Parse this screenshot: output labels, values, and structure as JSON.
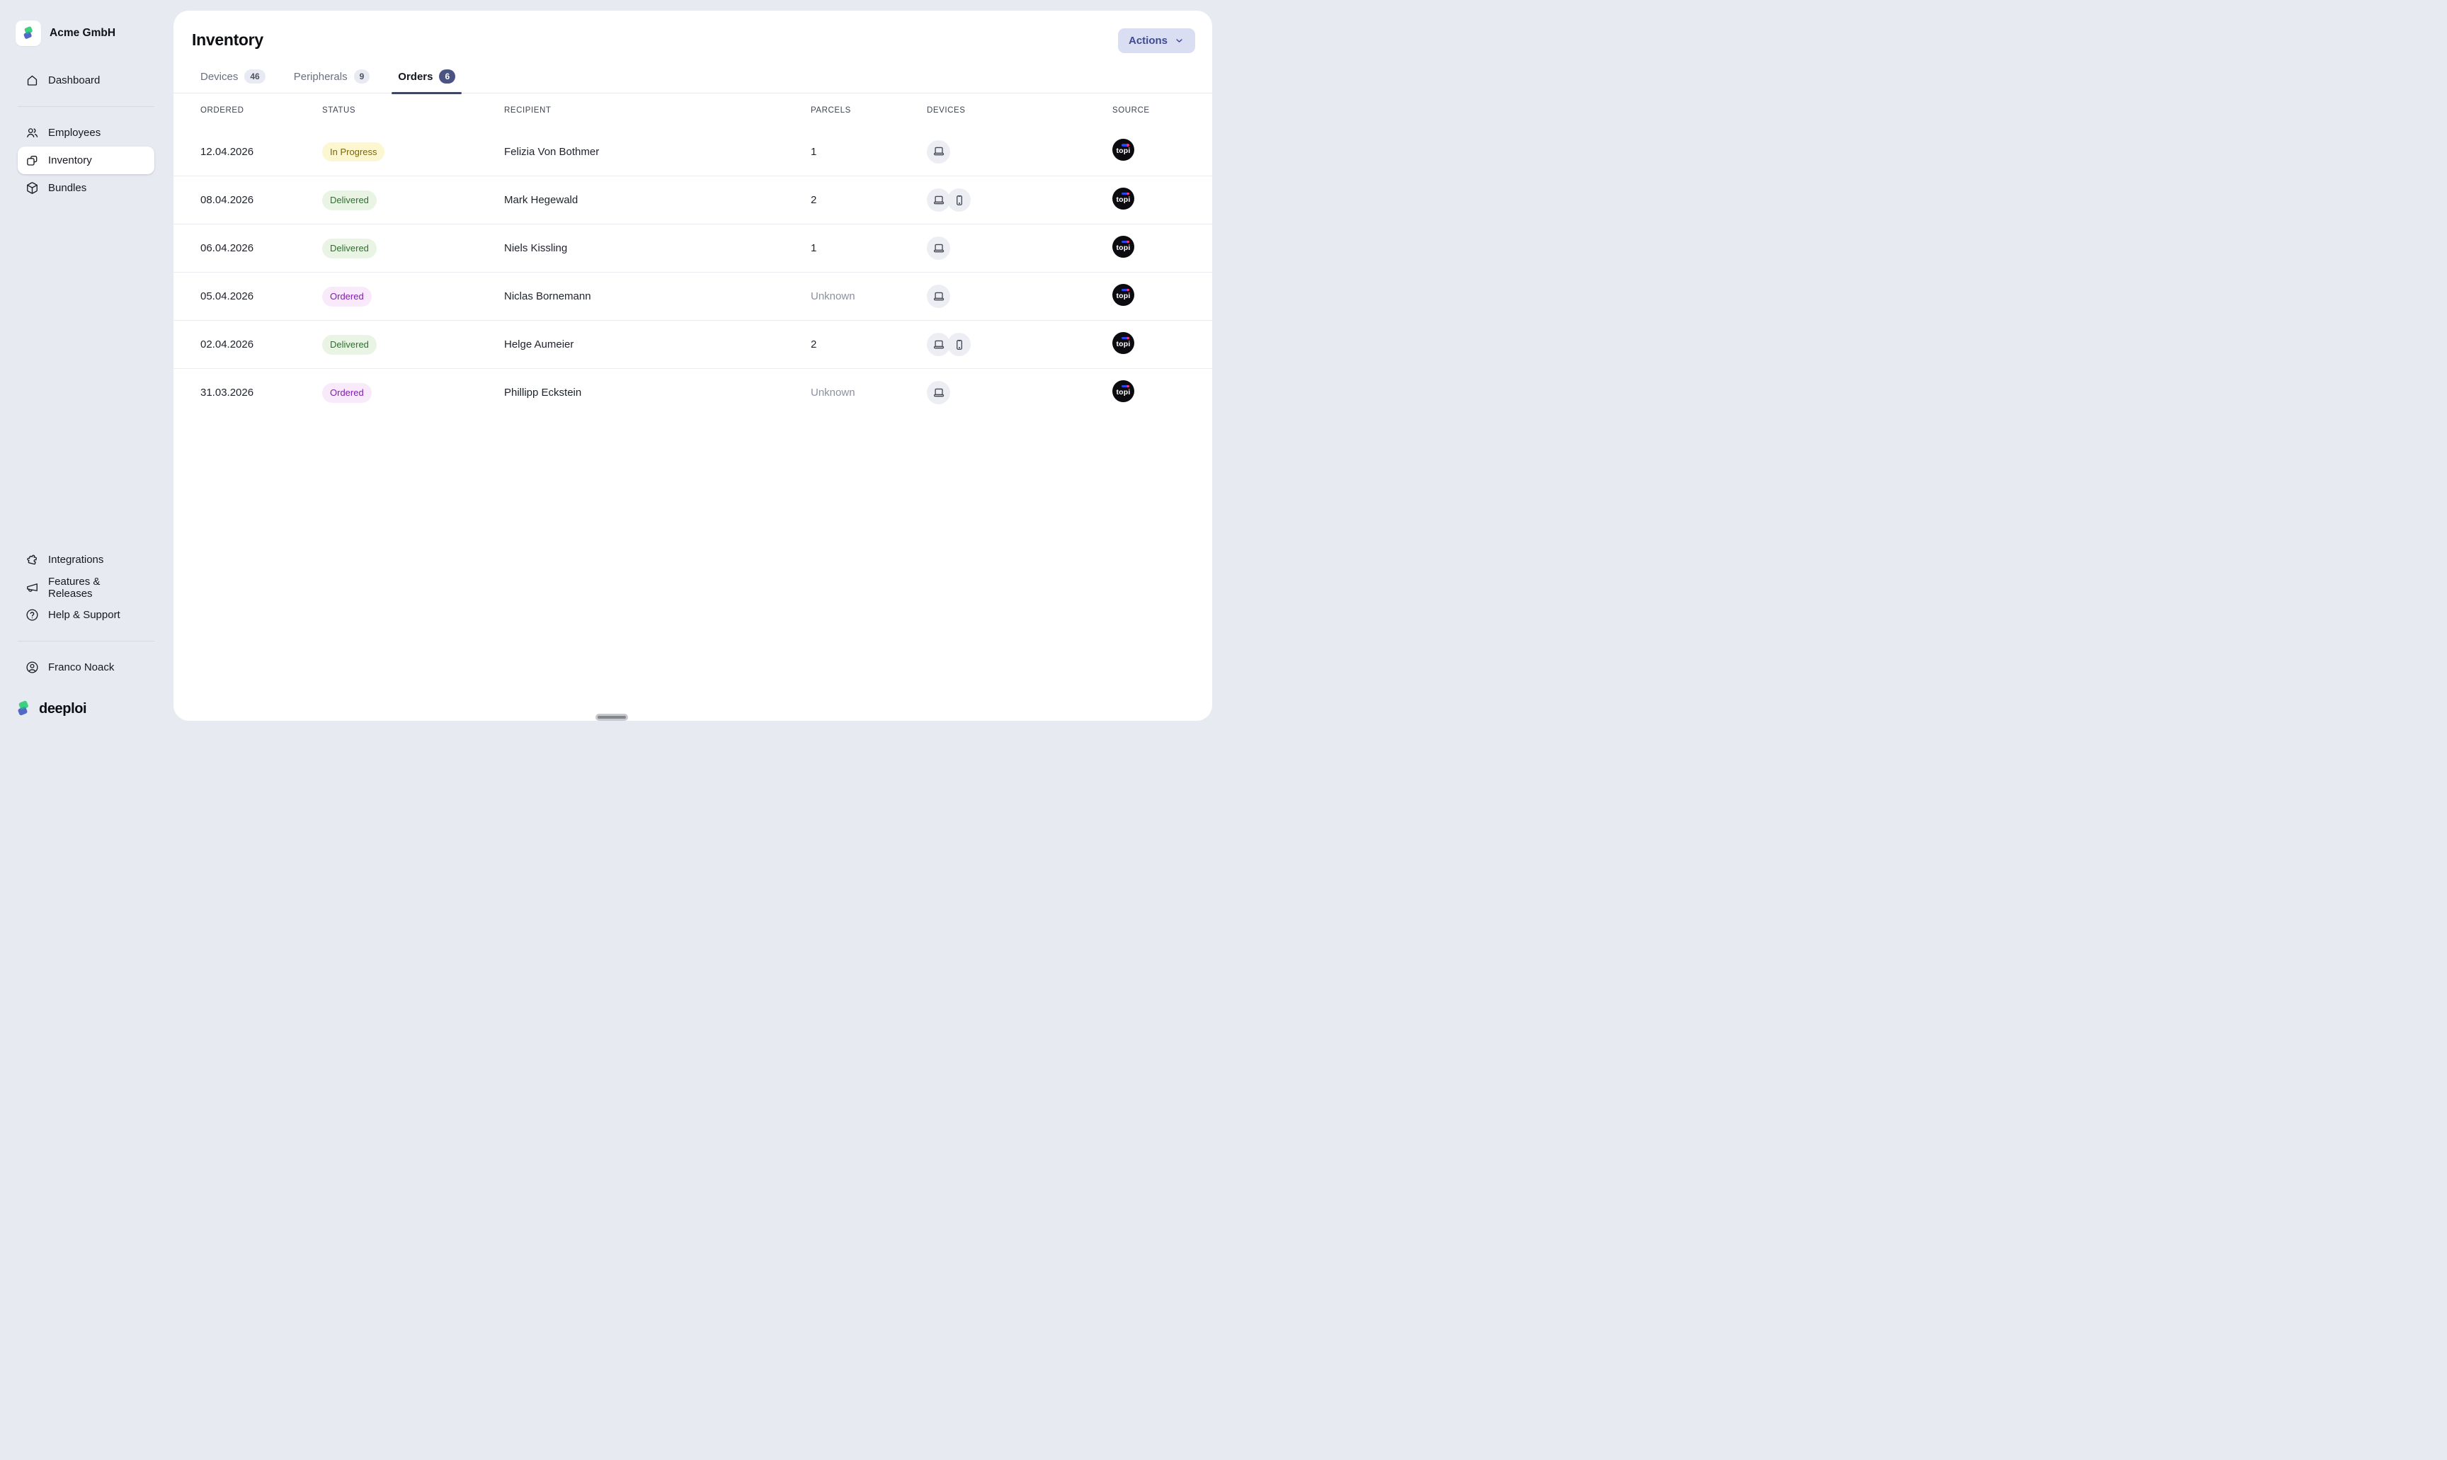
{
  "sidebar": {
    "org_name": "Acme GmbH",
    "items_top": [
      {
        "label": "Dashboard"
      }
    ],
    "items_main": [
      {
        "label": "Employees"
      },
      {
        "label": "Inventory",
        "active": true
      },
      {
        "label": "Bundles"
      }
    ],
    "items_bottom": [
      {
        "label": "Integrations"
      },
      {
        "label": "Features & Releases"
      },
      {
        "label": "Help & Support"
      }
    ],
    "user_name": "Franco Noack",
    "brand_name": "deeploi"
  },
  "page": {
    "title": "Inventory",
    "actions_button": "Actions"
  },
  "tabs": [
    {
      "label": "Devices",
      "count": "46",
      "active": false
    },
    {
      "label": "Peripherals",
      "count": "9",
      "active": false
    },
    {
      "label": "Orders",
      "count": "6",
      "active": true
    }
  ],
  "orders_table": {
    "columns": [
      "ORDERED",
      "STATUS",
      "RECIPIENT",
      "PARCELS",
      "DEVICES",
      "SOURCE"
    ],
    "rows": [
      {
        "ordered": "12.04.2026",
        "status": "In Progress",
        "recipient": "Felizia Von Bothmer",
        "parcels": "1",
        "devices": [
          "laptop-icon"
        ],
        "source": "topi"
      },
      {
        "ordered": "08.04.2026",
        "status": "Delivered",
        "recipient": "Mark Hegewald",
        "parcels": "2",
        "devices": [
          "laptop-icon",
          "phone-icon"
        ],
        "source": "topi"
      },
      {
        "ordered": "06.04.2026",
        "status": "Delivered",
        "recipient": "Niels Kissling",
        "parcels": "1",
        "devices": [
          "laptop-icon"
        ],
        "source": "topi"
      },
      {
        "ordered": "05.04.2026",
        "status": "Ordered",
        "recipient": "Niclas Bornemann",
        "parcels": "Unknown",
        "devices": [
          "laptop-icon"
        ],
        "source": "topi"
      },
      {
        "ordered": "02.04.2026",
        "status": "Delivered",
        "recipient": "Helge Aumeier",
        "parcels": "2",
        "devices": [
          "laptop-icon",
          "phone-icon"
        ],
        "source": "topi"
      },
      {
        "ordered": "31.03.2026",
        "status": "Ordered",
        "recipient": "Phillipp Eckstein",
        "parcels": "Unknown",
        "devices": [
          "laptop-icon"
        ],
        "source": "topi"
      }
    ]
  },
  "colors": {
    "page_bg": "#e8eaf2",
    "card_bg": "#ffffff",
    "accent_indigo": "#4a5382",
    "active_tab_underline": "#3d4664",
    "actions_button_bg": "#d9def3",
    "actions_button_text": "#3f4b8e",
    "status_in_progress_bg": "#fcf6d1",
    "status_in_progress_text": "#7a650e",
    "status_delivered_bg": "#e9f4e4",
    "status_delivered_text": "#316d33",
    "status_ordered_bg": "#f8e9fb",
    "status_ordered_text": "#7d21a6",
    "source_badge_bg": "#0c0c10",
    "brand_green": "#3ecf80",
    "brand_blue": "#5168c6"
  }
}
